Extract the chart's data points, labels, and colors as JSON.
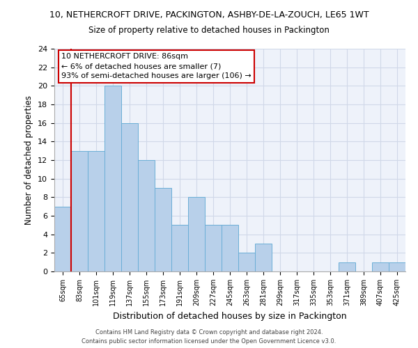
{
  "title": "10, NETHERCROFT DRIVE, PACKINGTON, ASHBY-DE-LA-ZOUCH, LE65 1WT",
  "subtitle": "Size of property relative to detached houses in Packington",
  "xlabel": "Distribution of detached houses by size in Packington",
  "ylabel": "Number of detached properties",
  "categories": [
    "65sqm",
    "83sqm",
    "101sqm",
    "119sqm",
    "137sqm",
    "155sqm",
    "173sqm",
    "191sqm",
    "209sqm",
    "227sqm",
    "245sqm",
    "263sqm",
    "281sqm",
    "299sqm",
    "317sqm",
    "335sqm",
    "353sqm",
    "371sqm",
    "389sqm",
    "407sqm",
    "425sqm"
  ],
  "values": [
    7,
    13,
    13,
    20,
    16,
    12,
    9,
    5,
    8,
    5,
    5,
    2,
    3,
    0,
    0,
    0,
    0,
    1,
    0,
    1,
    1
  ],
  "bar_color": "#b8d0ea",
  "bar_edge_color": "#6aaed6",
  "grid_color": "#d0d8e8",
  "vline_color": "#cc0000",
  "vline_x_index": 1,
  "ylim": [
    0,
    24
  ],
  "yticks": [
    0,
    2,
    4,
    6,
    8,
    10,
    12,
    14,
    16,
    18,
    20,
    22,
    24
  ],
  "annotation_box_text": "10 NETHERCROFT DRIVE: 86sqm\n← 6% of detached houses are smaller (7)\n93% of semi-detached houses are larger (106) →",
  "annotation_box_color": "#cc0000",
  "footer_line1": "Contains HM Land Registry data © Crown copyright and database right 2024.",
  "footer_line2": "Contains public sector information licensed under the Open Government Licence v3.0.",
  "background_color": "#eef2fa"
}
